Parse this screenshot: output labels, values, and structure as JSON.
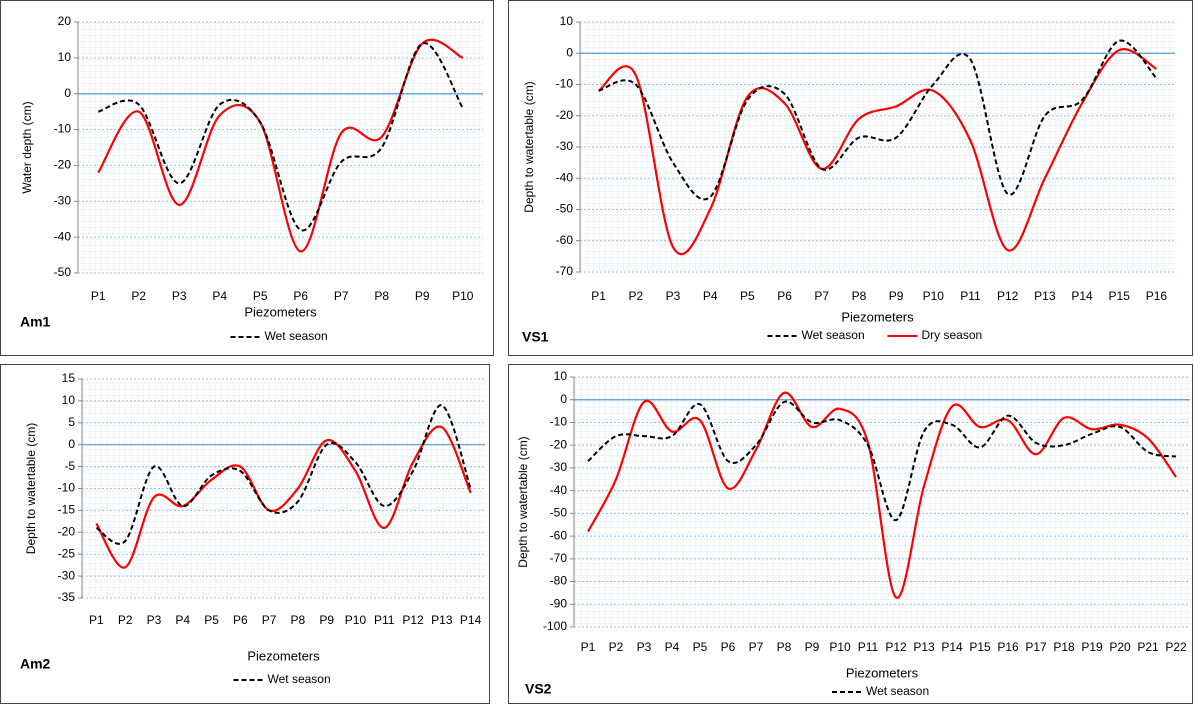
{
  "chart_data": [
    {
      "type": "line",
      "panel_label": "Am1",
      "xlabel": "Piezometers",
      "ylabel": "Water depth (cm)",
      "categories": [
        "P1",
        "P2",
        "P3",
        "P4",
        "P5",
        "P6",
        "P7",
        "P8",
        "P9",
        "P10"
      ],
      "ylim": [
        -50,
        20
      ],
      "yticks": [
        -50,
        -40,
        -30,
        -20,
        -10,
        0,
        10,
        20
      ],
      "grid": true,
      "series": [
        {
          "name": "Wet season",
          "color": "#000000",
          "dash": true,
          "values": [
            -5,
            -3,
            -25,
            -3,
            -8,
            -38,
            -19,
            -15,
            14,
            -4
          ]
        },
        {
          "color": "#ff0000",
          "dash": false,
          "values": [
            -22,
            -5,
            -31,
            -6,
            -8,
            -44,
            -11,
            -12,
            14,
            10
          ]
        }
      ]
    },
    {
      "type": "line",
      "panel_label": "VS1",
      "xlabel": "Piezometers",
      "ylabel": "Depth to watertable (cm)",
      "categories": [
        "P1",
        "P2",
        "P3",
        "P4",
        "P5",
        "P6",
        "P7",
        "P8",
        "P9",
        "P10",
        "P11",
        "P12",
        "P13",
        "P14",
        "P15",
        "P16"
      ],
      "ylim": [
        -70,
        10
      ],
      "yticks": [
        -70,
        -60,
        -50,
        -40,
        -30,
        -20,
        -10,
        0,
        10
      ],
      "grid": true,
      "series": [
        {
          "name": "Wet season",
          "color": "#000000",
          "dash": true,
          "values": [
            -12,
            -10,
            -35,
            -46,
            -15,
            -13,
            -37,
            -27,
            -27,
            -10,
            -2,
            -45,
            -20,
            -15,
            4,
            -8
          ]
        },
        {
          "name": "Dry season",
          "color": "#ff0000",
          "dash": false,
          "values": [
            -12,
            -7,
            -62,
            -50,
            -14,
            -16,
            -37,
            -21,
            -17,
            -12,
            -28,
            -63,
            -40,
            -16,
            1,
            -5
          ]
        }
      ]
    },
    {
      "type": "line",
      "panel_label": "Am2",
      "xlabel": "Piezometers",
      "ylabel": "Depth to watertable (cm)",
      "categories": [
        "P1",
        "P2",
        "P3",
        "P4",
        "P5",
        "P6",
        "P7",
        "P8",
        "P9",
        "P10",
        "P11",
        "P12",
        "P13",
        "P14"
      ],
      "ylim": [
        -35,
        15
      ],
      "yticks": [
        -35,
        -30,
        -25,
        -20,
        -15,
        -10,
        -5,
        0,
        5,
        10,
        15
      ],
      "grid": true,
      "series": [
        {
          "name": "Wet season",
          "color": "#000000",
          "dash": true,
          "values": [
            -19,
            -22,
            -5,
            -14,
            -7,
            -6,
            -15,
            -13,
            0,
            -4,
            -14,
            -6,
            9,
            -10
          ]
        },
        {
          "color": "#ff0000",
          "dash": false,
          "values": [
            -18,
            -28,
            -12,
            -14,
            -8,
            -5,
            -15,
            -10,
            1,
            -6,
            -19,
            -4,
            4,
            -11
          ]
        }
      ]
    },
    {
      "type": "line",
      "panel_label": "VS2",
      "xlabel": "Piezometers",
      "ylabel": "Depth to watertable (cm)",
      "categories": [
        "P1",
        "P2",
        "P3",
        "P4",
        "P5",
        "P6",
        "P7",
        "P8",
        "P9",
        "P10",
        "P11",
        "P12",
        "P13",
        "P14",
        "P15",
        "P16",
        "P17",
        "P18",
        "P19",
        "P20",
        "P21",
        "P22"
      ],
      "ylim": [
        -100,
        10
      ],
      "yticks": [
        -100,
        -90,
        -80,
        -70,
        -60,
        -50,
        -40,
        -30,
        -20,
        -10,
        0,
        10
      ],
      "grid": true,
      "series": [
        {
          "name": "Wet season",
          "color": "#000000",
          "dash": true,
          "values": [
            -27,
            -16,
            -16,
            -16,
            -2,
            -27,
            -20,
            -1,
            -10,
            -9,
            -20,
            -53,
            -14,
            -11,
            -21,
            -7,
            -19,
            -20,
            -15,
            -12,
            -23,
            -25
          ]
        },
        {
          "color": "#ff0000",
          "dash": false,
          "values": [
            -58,
            -35,
            -1,
            -14,
            -9,
            -39,
            -22,
            3,
            -12,
            -4,
            -19,
            -87,
            -38,
            -3,
            -12,
            -9,
            -24,
            -8,
            -13,
            -11,
            -17,
            -34
          ]
        }
      ]
    }
  ]
}
